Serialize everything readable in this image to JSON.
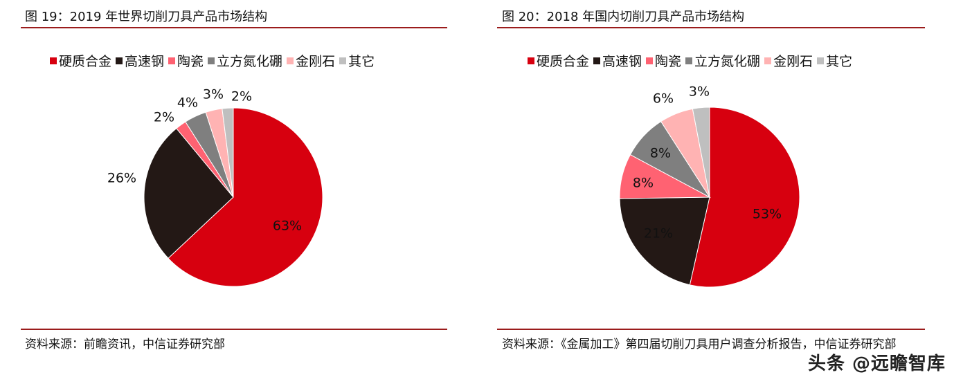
{
  "colors": [
    "#d7000f",
    "#231815",
    "#ff6272",
    "#7f7f7f",
    "#ffb3b3",
    "#bfbfbf"
  ],
  "legend": [
    "硬质合金",
    "高速钢",
    "陶瓷",
    "立方氮化硼",
    "金刚石",
    "其它"
  ],
  "chart_data": [
    {
      "type": "pie",
      "title": "图 19：2019 年世界切削刀具产品市场结构",
      "categories": [
        "硬质合金",
        "高速钢",
        "陶瓷",
        "立方氮化硼",
        "金刚石",
        "其它"
      ],
      "values": [
        63,
        26,
        2,
        4,
        3,
        2
      ],
      "labels": [
        "63%",
        "26%",
        "2%",
        "4%",
        "3%",
        "2%"
      ],
      "legend_position": "top",
      "source": "资料来源：前瞻资讯，中信证券研究部"
    },
    {
      "type": "pie",
      "title": "图 20：2018 年国内切削刀具产品市场结构",
      "categories": [
        "硬质合金",
        "高速钢",
        "陶瓷",
        "立方氮化硼",
        "金刚石",
        "其它"
      ],
      "values": [
        53,
        21,
        8,
        8,
        6,
        3
      ],
      "labels": [
        "53%",
        "21%",
        "8%",
        "8%",
        "6%",
        "3%"
      ],
      "legend_position": "top",
      "source": "资料来源：《金属加工》第四届切削刀具用户调查分析报告，中信证券研究部"
    }
  ],
  "watermark": "头条 @远瞻智库"
}
